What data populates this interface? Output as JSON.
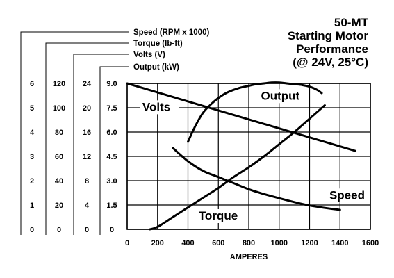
{
  "chart_data": {
    "type": "line",
    "title_lines": [
      "50-MT",
      "Starting Motor",
      "Performance",
      "(@ 24V, 25°C)"
    ],
    "xlabel": "AMPERES",
    "xlim": [
      0,
      1600
    ],
    "x_ticks": [
      "0",
      "200",
      "400",
      "600",
      "800",
      "1000",
      "1200",
      "1400",
      "1600"
    ],
    "x_tick_values": [
      0,
      200,
      400,
      600,
      800,
      1000,
      1200,
      1400,
      1600
    ],
    "grid": true,
    "axes": [
      {
        "label": "Speed (RPM x 1000)",
        "range": [
          0,
          6
        ],
        "ticks": [
          "0",
          "1",
          "2",
          "3",
          "4",
          "5",
          "6"
        ]
      },
      {
        "label": "Torque (lb-ft)",
        "range": [
          0,
          120
        ],
        "ticks": [
          "0",
          "20",
          "40",
          "60",
          "80",
          "100",
          "120"
        ]
      },
      {
        "label": "Volts (V)",
        "range": [
          0,
          24
        ],
        "ticks": [
          "0",
          "4",
          "8",
          "12",
          "16",
          "20",
          "24"
        ]
      },
      {
        "label": "Output (kW)",
        "range": [
          0,
          9
        ],
        "ticks": [
          "0",
          "1.5",
          "3.0",
          "4.5",
          "6.0",
          "7.5",
          "9.0"
        ]
      }
    ],
    "series": [
      {
        "name": "Volts",
        "axis": "Volts (V)",
        "x": [
          0,
          1500
        ],
        "y": [
          24,
          12.9
        ],
        "label_at": [
          100,
          19.5
        ]
      },
      {
        "name": "Output",
        "axis": "Output (kW)",
        "x": [
          400,
          450,
          500,
          550,
          600,
          650,
          700,
          750,
          800,
          850,
          900,
          950,
          1000,
          1050,
          1100,
          1150,
          1200,
          1250,
          1280
        ],
        "y": [
          5.4,
          6.4,
          7.2,
          7.7,
          8.1,
          8.4,
          8.6,
          8.75,
          8.85,
          8.95,
          9.0,
          9.05,
          9.05,
          9.0,
          8.95,
          8.9,
          8.8,
          8.6,
          8.4
        ],
        "label_at": [
          880,
          8.0
        ]
      },
      {
        "name": "Torque",
        "axis": "Torque (lb-ft)",
        "x": [
          150,
          200,
          300,
          400,
          500,
          600,
          700,
          800,
          900,
          1000,
          1100,
          1200,
          1300
        ],
        "y": [
          0,
          2,
          10,
          18,
          26,
          34,
          43,
          51,
          60,
          70,
          80,
          91,
          102
        ],
        "label_at": [
          470,
          8
        ]
      },
      {
        "name": "Speed",
        "axis": "Speed (RPM x 1000)",
        "x": [
          300,
          400,
          500,
          600,
          700,
          800,
          900,
          1000,
          1100,
          1200,
          1300,
          1400
        ],
        "y": [
          3.35,
          2.8,
          2.4,
          2.15,
          1.9,
          1.65,
          1.45,
          1.28,
          1.12,
          0.98,
          0.88,
          0.8
        ],
        "label_at": [
          1330,
          1.25
        ]
      }
    ]
  }
}
